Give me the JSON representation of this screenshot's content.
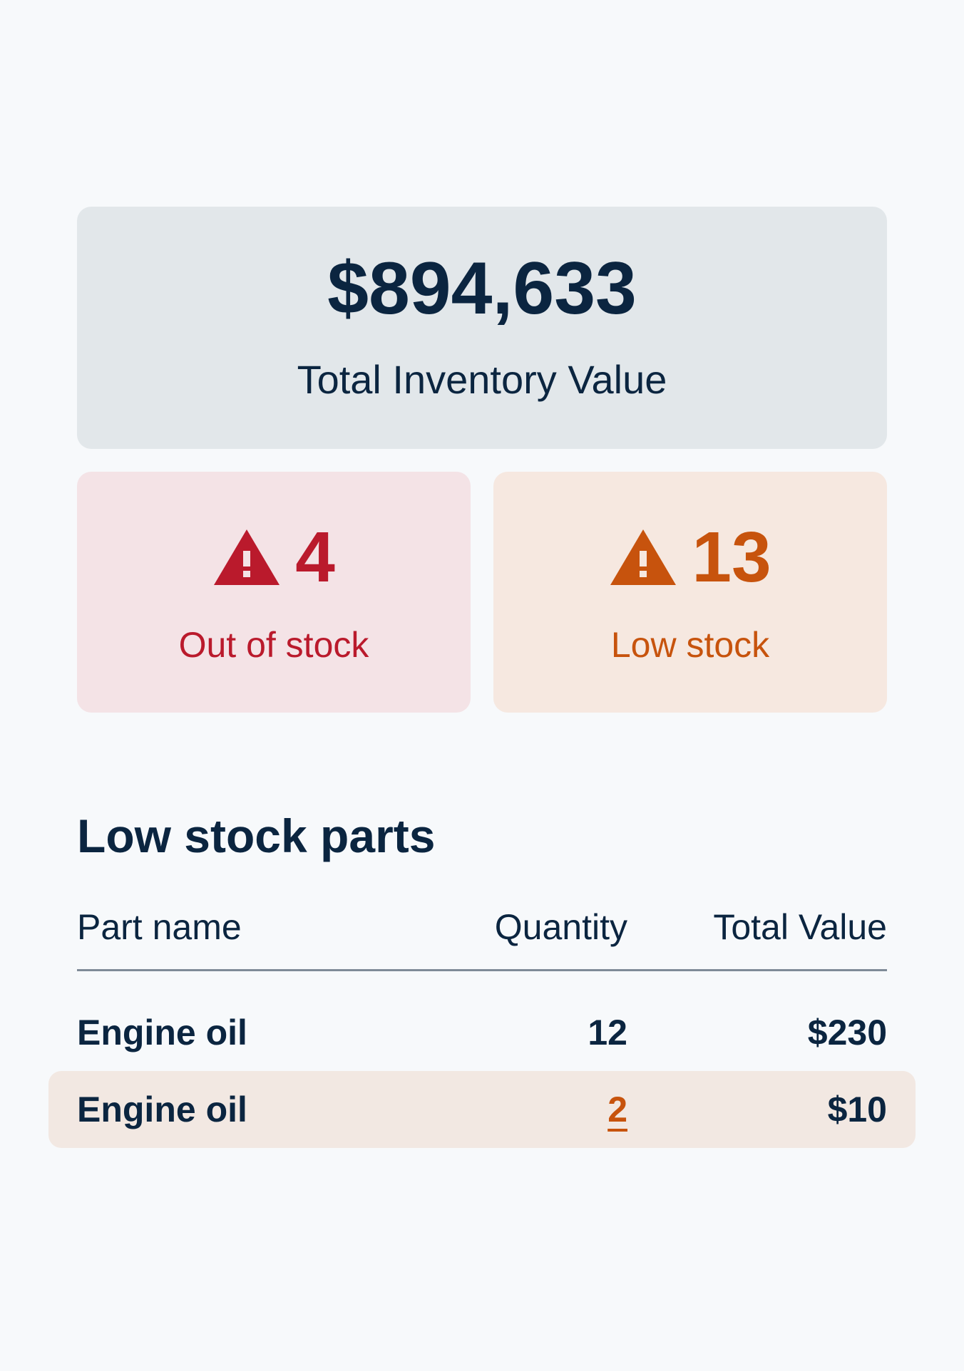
{
  "summary": {
    "total_value": "$894,633",
    "total_label": "Total Inventory Value"
  },
  "stats": {
    "out_of_stock": {
      "count": "4",
      "label": "Out of stock",
      "icon": "warning-triangle-icon",
      "color": "#ba1a2c",
      "background": "#f4e3e6"
    },
    "low_stock": {
      "count": "13",
      "label": "Low stock",
      "icon": "warning-triangle-icon",
      "color": "#c7530d",
      "background": "#f6e8e0"
    }
  },
  "low_stock_parts": {
    "title": "Low stock parts",
    "columns": {
      "name": "Part name",
      "quantity": "Quantity",
      "value": "Total Value"
    },
    "rows": [
      {
        "name": "Engine oil",
        "quantity": "12",
        "value": "$230"
      },
      {
        "name": "Engine oil",
        "quantity": "2",
        "value": "$10"
      }
    ]
  }
}
